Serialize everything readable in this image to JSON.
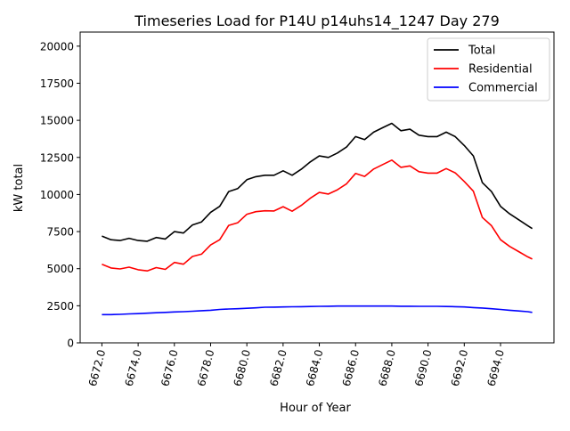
{
  "chart_data": {
    "type": "line",
    "title": "Timeseries Load for P14U p14uhs14_1247  Day 279",
    "xlabel": "Hour of Year",
    "ylabel": "kW total",
    "xlim": [
      6670.8,
      6696.95
    ],
    "ylim": [
      0,
      20950
    ],
    "grid": false,
    "legend_position": "top-right",
    "xticks": [
      6672,
      6674,
      6676,
      6678,
      6680,
      6682,
      6684,
      6686,
      6688,
      6690,
      6692,
      6694
    ],
    "xtick_labels": [
      "6672.0",
      "6674.0",
      "6676.0",
      "6678.0",
      "6680.0",
      "6682.0",
      "6684.0",
      "6686.0",
      "6688.0",
      "6690.0",
      "6692.0",
      "6694.0"
    ],
    "yticks": [
      0,
      2500,
      5000,
      7500,
      10000,
      12500,
      15000,
      17500,
      20000
    ],
    "ytick_labels": [
      "0",
      "2500",
      "5000",
      "7500",
      "10000",
      "12500",
      "15000",
      "17500",
      "20000"
    ],
    "x": [
      6672,
      6672.5,
      6673,
      6673.5,
      6674,
      6674.5,
      6675,
      6675.5,
      6676,
      6676.5,
      6677,
      6677.5,
      6678,
      6678.5,
      6679,
      6679.5,
      6680,
      6680.5,
      6681,
      6681.5,
      6682,
      6682.5,
      6683,
      6683.5,
      6684,
      6684.5,
      6685,
      6685.5,
      6686,
      6686.5,
      6687,
      6687.5,
      6688,
      6688.5,
      6689,
      6689.5,
      6690,
      6690.5,
      6691,
      6691.5,
      6692,
      6692.5,
      6693,
      6693.5,
      6694,
      6694.5,
      6695,
      6695.5,
      6695.75
    ],
    "series": [
      {
        "name": "Total",
        "color": "#000000",
        "values": [
          7200,
          6950,
          6900,
          7050,
          6900,
          6850,
          7100,
          7000,
          7500,
          7400,
          7950,
          8150,
          8800,
          9200,
          10200,
          10400,
          11000,
          11200,
          11300,
          11300,
          11600,
          11300,
          11700,
          12200,
          12600,
          12500,
          12800,
          13200,
          13900,
          13700,
          14200,
          14500,
          14800,
          14300,
          14400,
          14000,
          13900,
          13900,
          14200,
          13900,
          13300,
          12600,
          10800,
          10200,
          9200,
          8700,
          8300,
          7900,
          7700
        ]
      },
      {
        "name": "Residential",
        "color": "#ff0000",
        "values": [
          5300,
          5050,
          4980,
          5100,
          4930,
          4850,
          5070,
          4950,
          5420,
          5300,
          5820,
          5980,
          6600,
          6950,
          7920,
          8100,
          8670,
          8840,
          8900,
          8890,
          9180,
          8870,
          9260,
          9750,
          10140,
          10030,
          10320,
          10720,
          11420,
          11220,
          11720,
          12020,
          12320,
          11830,
          11930,
          11540,
          11440,
          11440,
          11750,
          11460,
          10880,
          10220,
          8450,
          7900,
          6950,
          6500,
          6150,
          5800,
          5650
        ]
      },
      {
        "name": "Commercial",
        "color": "#0000ff",
        "values": [
          1900,
          1900,
          1920,
          1950,
          1970,
          2000,
          2030,
          2050,
          2080,
          2100,
          2130,
          2170,
          2200,
          2250,
          2280,
          2300,
          2330,
          2360,
          2400,
          2410,
          2420,
          2430,
          2440,
          2450,
          2460,
          2470,
          2480,
          2480,
          2480,
          2480,
          2480,
          2480,
          2480,
          2470,
          2470,
          2460,
          2460,
          2460,
          2450,
          2440,
          2420,
          2380,
          2350,
          2300,
          2250,
          2200,
          2150,
          2100,
          2050
        ]
      }
    ]
  }
}
